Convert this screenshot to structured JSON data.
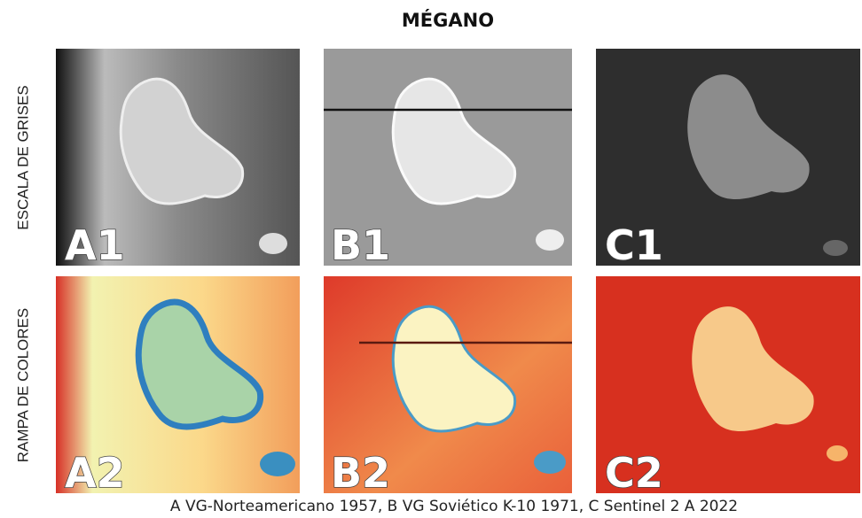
{
  "title": "MÉGANO",
  "row_labels": [
    "ESCALA DE GRISES",
    "RAMPA DE COLORES"
  ],
  "panels": [
    {
      "label": "A1"
    },
    {
      "label": "B1"
    },
    {
      "label": "C1"
    },
    {
      "label": "A2"
    },
    {
      "label": "B2"
    },
    {
      "label": "C2"
    }
  ],
  "caption": "A VG-Norteamericano 1957, B VG Soviético K-10 1971, C Sentinel 2 A 2022"
}
